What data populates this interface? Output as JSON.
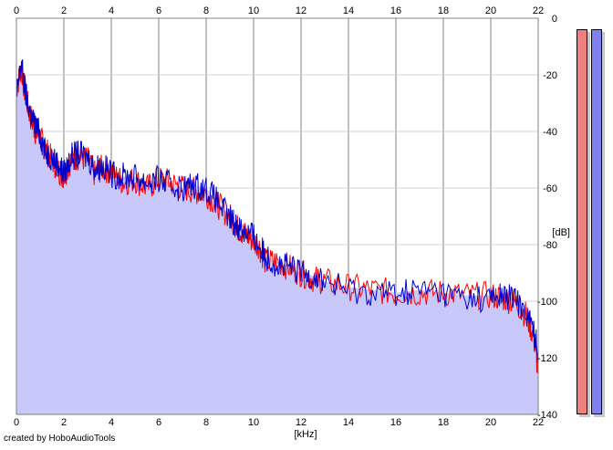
{
  "chart_data": {
    "type": "area",
    "xlabel": "[kHz]",
    "ylabel": "[dB]",
    "xlim": [
      0,
      22
    ],
    "ylim": [
      -140,
      0
    ],
    "x_ticks": [
      0,
      2,
      4,
      6,
      8,
      10,
      12,
      14,
      16,
      18,
      20,
      22
    ],
    "y_ticks": [
      0,
      -20,
      -40,
      -60,
      -80,
      -100,
      -120,
      -140
    ],
    "grid": "vertical",
    "series": [
      {
        "color": "#ff0000",
        "x": [
          0,
          0.2,
          0.4,
          0.6,
          0.8,
          1.0,
          1.2,
          1.5,
          1.8,
          2.0,
          2.3,
          2.6,
          3.0,
          3.3,
          3.6,
          4.0,
          4.5,
          5.0,
          5.5,
          6.0,
          6.5,
          7.0,
          7.5,
          8.0,
          8.5,
          9.0,
          9.3,
          9.6,
          9.9,
          10.2,
          10.5,
          11.0,
          11.5,
          12.0,
          12.5,
          13.0,
          14.0,
          15.0,
          16.0,
          17.0,
          18.0,
          19.0,
          20.0,
          20.5,
          21.0,
          21.5,
          21.8,
          22.0
        ],
        "values": [
          -25,
          -18,
          -28,
          -35,
          -40,
          -42,
          -46,
          -50,
          -54,
          -56,
          -50,
          -49,
          -50,
          -55,
          -53,
          -54,
          -58,
          -57,
          -60,
          -57,
          -58,
          -60,
          -61,
          -62,
          -66,
          -70,
          -74,
          -76,
          -78,
          -80,
          -86,
          -86,
          -88,
          -90,
          -92,
          -93,
          -95,
          -96,
          -97,
          -97,
          -97,
          -98,
          -98,
          -99,
          -100,
          -105,
          -112,
          -125
        ]
      },
      {
        "color": "#0000cc",
        "x": [
          0,
          0.2,
          0.4,
          0.6,
          0.8,
          1.0,
          1.2,
          1.5,
          1.8,
          2.0,
          2.3,
          2.6,
          3.0,
          3.3,
          3.6,
          4.0,
          4.5,
          5.0,
          5.5,
          6.0,
          6.5,
          7.0,
          7.5,
          8.0,
          8.5,
          9.0,
          9.3,
          9.6,
          9.9,
          10.2,
          10.5,
          11.0,
          11.5,
          12.0,
          12.5,
          13.0,
          14.0,
          15.0,
          16.0,
          17.0,
          18.0,
          19.0,
          20.0,
          20.5,
          21.0,
          21.5,
          21.8,
          22.0
        ],
        "values": [
          -28,
          -16,
          -27,
          -34,
          -38,
          -41,
          -47,
          -49,
          -52,
          -55,
          -49,
          -48,
          -49,
          -53,
          -52,
          -55,
          -56,
          -56,
          -58,
          -57,
          -59,
          -60,
          -59,
          -60,
          -65,
          -71,
          -73,
          -75,
          -76,
          -80,
          -84,
          -87,
          -88,
          -90,
          -91,
          -93,
          -96,
          -97,
          -97,
          -96,
          -97,
          -99,
          -99,
          -98,
          -99,
          -104,
          -110,
          -118
        ]
      }
    ]
  },
  "meters": {
    "left_color": "#f08080",
    "right_color": "#8080f0"
  },
  "credit": "created by HoboAudioTools"
}
